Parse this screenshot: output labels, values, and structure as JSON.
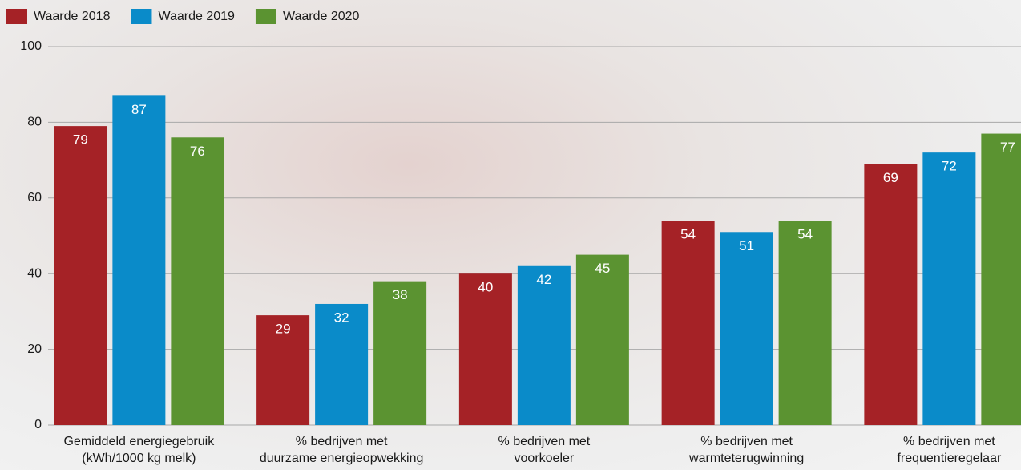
{
  "chart_data": {
    "type": "bar",
    "categories": [
      [
        "Gemiddeld energiegebruik",
        "(kWh/1000 kg melk)"
      ],
      [
        "% bedrijven met",
        "duurzame energieopwekking"
      ],
      [
        "% bedrijven met",
        "voorkoeler"
      ],
      [
        "% bedrijven met",
        "warmteterugwinning"
      ],
      [
        "% bedrijven met",
        "frequentieregelaar"
      ]
    ],
    "series": [
      {
        "name": "Waarde 2018",
        "color": "#a52226",
        "values": [
          79,
          29,
          40,
          54,
          69
        ]
      },
      {
        "name": "Waarde 2019",
        "color": "#0a8bc9",
        "values": [
          87,
          32,
          42,
          51,
          72
        ]
      },
      {
        "name": "Waarde 2020",
        "color": "#5b9331",
        "values": [
          76,
          38,
          45,
          54,
          77
        ]
      }
    ],
    "ylim": [
      0,
      100
    ],
    "yticks": [
      0,
      20,
      40,
      60,
      80,
      100
    ],
    "grid": true,
    "legend": "top-left"
  }
}
